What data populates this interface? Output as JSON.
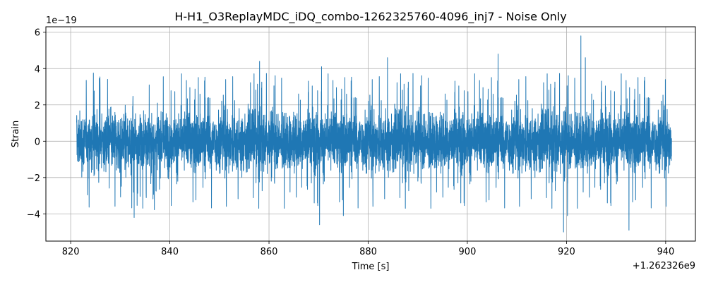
{
  "chart_data": {
    "type": "line",
    "title": "H-H1_O3ReplayMDC_iDQ_combo-1262325760-4096_inj7 - Noise Only",
    "xlabel": "Time [s]",
    "ylabel": "Strain",
    "x_offset_label": "+1.262326e9",
    "y_scale_label": "1e−19",
    "x_offset": 1262326000,
    "y_scale": 1e-19,
    "xlim": [
      1262326815,
      1262326946
    ],
    "ylim": [
      -5.5e-19,
      6.3e-19
    ],
    "x_ticks": [
      1262326820,
      1262326840,
      1262326860,
      1262326880,
      1262326900,
      1262326920,
      1262326940
    ],
    "x_tick_labels": [
      "820",
      "840",
      "860",
      "880",
      "900",
      "920",
      "940"
    ],
    "y_ticks": [
      -4e-19,
      -2e-19,
      0,
      2e-19,
      4e-19,
      6e-19
    ],
    "y_tick_labels": [
      "−4",
      "−2",
      "0",
      "2",
      "4",
      "6"
    ],
    "grid": true,
    "line_color": "#1f77b4",
    "series": [
      {
        "x_range": [
          1262326821.2,
          1262326941.2
        ],
        "typical_band": [
          -2.2e-19,
          2.2e-19
        ],
        "rms": 1.1e-19,
        "extremes": [
          {
            "x": 1262326922.9,
            "y": 5.8e-19
          },
          {
            "x": 1262326906.2,
            "y": 4.8e-19
          },
          {
            "x": 1262326923.8,
            "y": 4.6e-19
          },
          {
            "x": 1262326883.9,
            "y": 4.6e-19
          },
          {
            "x": 1262326858.1,
            "y": 4.4e-19
          },
          {
            "x": 1262326870.6,
            "y": 4.1e-19
          },
          {
            "x": 1262326919.4,
            "y": -5e-19
          },
          {
            "x": 1262326932.6,
            "y": -4.9e-19
          },
          {
            "x": 1262326870.2,
            "y": -4.6e-19
          },
          {
            "x": 1262326832.8,
            "y": -4.2e-19
          },
          {
            "x": 1262326875.0,
            "y": -4.1e-19
          },
          {
            "x": 1262326920.2,
            "y": -4.1e-19
          }
        ]
      }
    ]
  }
}
